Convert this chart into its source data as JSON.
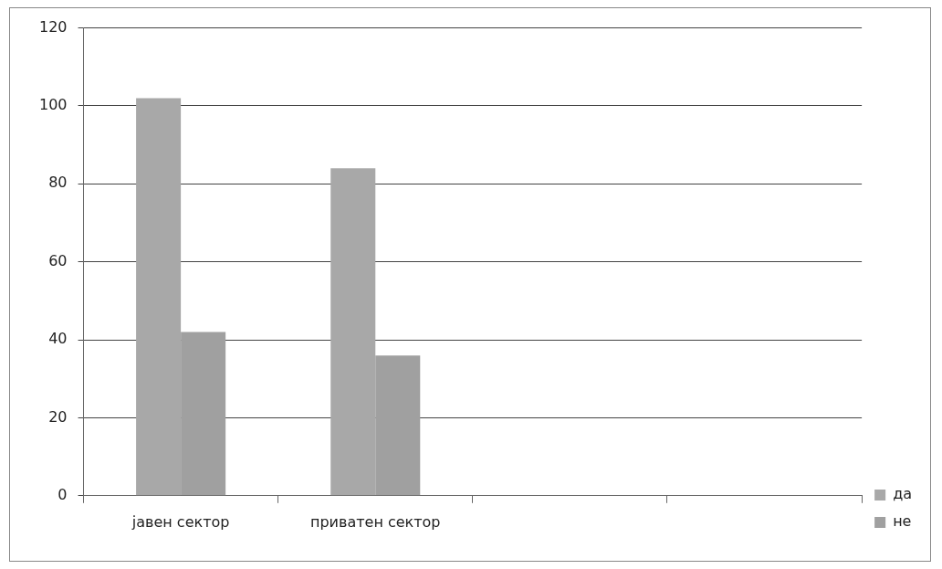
{
  "chart_data": {
    "type": "bar",
    "categories": [
      "јавен сектор",
      "приватен сектор",
      null,
      null
    ],
    "series": [
      {
        "name": "да",
        "color": "#a8a8a8",
        "values": [
          102,
          84,
          null,
          null
        ]
      },
      {
        "name": "не",
        "color": "#a0a0a0",
        "values": [
          42,
          36,
          null,
          null
        ]
      }
    ],
    "ylim": [
      0,
      120
    ],
    "yticks": [
      0,
      20,
      40,
      60,
      80,
      100,
      120
    ],
    "grid": "y",
    "legend": "right"
  }
}
